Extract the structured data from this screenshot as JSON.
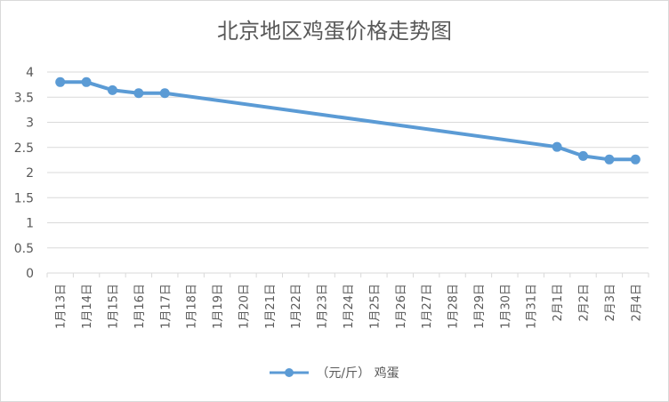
{
  "chart_data": {
    "type": "line",
    "title": "北京地区鸡蛋价格走势图",
    "categories": [
      "1月13日",
      "1月14日",
      "1月15日",
      "1月16日",
      "1月17日",
      "1月18日",
      "1月19日",
      "1月20日",
      "1月21日",
      "1月22日",
      "1月23日",
      "1月24日",
      "1月25日",
      "1月26日",
      "1月27日",
      "1月28日",
      "1月29日",
      "1月30日",
      "1月31日",
      "2月1日",
      "2月2日",
      "2月3日",
      "2月4日"
    ],
    "y_ticks": [
      "0",
      "0.5",
      "1",
      "1.5",
      "2",
      "2.5",
      "3",
      "3.5",
      "4"
    ],
    "ylim": [
      0,
      4
    ],
    "grid": true,
    "legend_position": "bottom",
    "series": [
      {
        "name": "（元/斤） 鸡蛋",
        "color": "#5b9bd5",
        "values": [
          3.8,
          3.8,
          3.64,
          3.58,
          3.58,
          null,
          null,
          null,
          null,
          null,
          null,
          null,
          null,
          null,
          null,
          null,
          null,
          null,
          null,
          2.51,
          2.33,
          2.26,
          2.26
        ]
      }
    ]
  },
  "colors": {
    "grid": "#d9d9d9",
    "text": "#595959",
    "series": "#5b9bd5"
  }
}
